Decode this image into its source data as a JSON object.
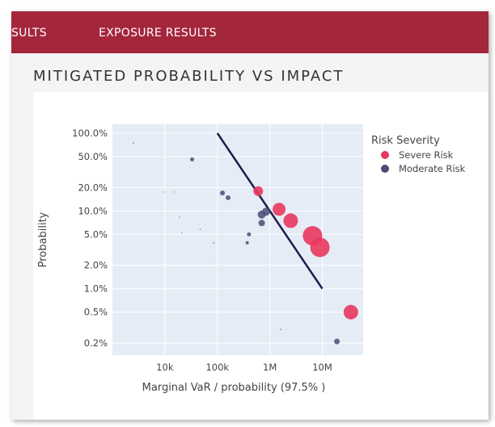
{
  "tabs": [
    {
      "label": "SULTS"
    },
    {
      "label": "EXPOSURE RESULTS"
    }
  ],
  "section": {
    "title": "MITIGATED PROBABILITY VS IMPACT"
  },
  "colors": {
    "severe": "#e8375e",
    "moderate": "#4b4b73",
    "trend": "#1e1a4e",
    "header": "#a4263b"
  },
  "chart_data": {
    "type": "scatter",
    "title": "",
    "xlabel": "Marginal VaR / probability (97.5% )",
    "ylabel": "Probability",
    "x_scale": "log",
    "y_scale": "log",
    "xlim": [
      1000,
      60000000
    ],
    "ylim": [
      0.0014,
      1.3
    ],
    "grid": true,
    "legend_title": "Risk Severity",
    "legend_position": "top-right",
    "x_ticks": [
      {
        "value": 10000,
        "label": "10k"
      },
      {
        "value": 100000,
        "label": "100k"
      },
      {
        "value": 1000000,
        "label": "1M"
      },
      {
        "value": 10000000,
        "label": "10M"
      }
    ],
    "y_ticks": [
      {
        "value": 1.0,
        "label": "100.0%"
      },
      {
        "value": 0.5,
        "label": "50.0%"
      },
      {
        "value": 0.2,
        "label": "20.0%"
      },
      {
        "value": 0.1,
        "label": "10.0%"
      },
      {
        "value": 0.05,
        "label": "5.0%"
      },
      {
        "value": 0.02,
        "label": "2.0%"
      },
      {
        "value": 0.01,
        "label": "1.0%"
      },
      {
        "value": 0.005,
        "label": "0.5%"
      },
      {
        "value": 0.002,
        "label": "0.2%"
      }
    ],
    "trend_line": {
      "x": [
        100000,
        10000000
      ],
      "y": [
        1.0,
        0.01
      ]
    },
    "series": [
      {
        "name": "Severe Risk",
        "points": [
          {
            "x": 600000,
            "y": 0.18,
            "size": 6
          },
          {
            "x": 1500000,
            "y": 0.105,
            "size": 8
          },
          {
            "x": 2500000,
            "y": 0.075,
            "size": 9
          },
          {
            "x": 6500000,
            "y": 0.048,
            "size": 12
          },
          {
            "x": 9000000,
            "y": 0.034,
            "size": 12
          },
          {
            "x": 35000000,
            "y": 0.005,
            "size": 9
          }
        ]
      },
      {
        "name": "Moderate Risk",
        "points": [
          {
            "x": 2500,
            "y": 0.75,
            "size": 0.8
          },
          {
            "x": 33000,
            "y": 0.46,
            "size": 2.5
          },
          {
            "x": 10000,
            "y": 0.175,
            "size": 0.5
          },
          {
            "x": 15000,
            "y": 0.175,
            "size": 0.5
          },
          {
            "x": 125000,
            "y": 0.17,
            "size": 3
          },
          {
            "x": 160000,
            "y": 0.148,
            "size": 3
          },
          {
            "x": 19000,
            "y": 0.083,
            "size": 0.4
          },
          {
            "x": 47000,
            "y": 0.058,
            "size": 0.7
          },
          {
            "x": 21000,
            "y": 0.052,
            "size": 0.4
          },
          {
            "x": 85000,
            "y": 0.039,
            "size": 0.8
          },
          {
            "x": 400000,
            "y": 0.05,
            "size": 2.5
          },
          {
            "x": 370000,
            "y": 0.039,
            "size": 2
          },
          {
            "x": 700000,
            "y": 0.09,
            "size": 5
          },
          {
            "x": 850000,
            "y": 0.098,
            "size": 5
          },
          {
            "x": 700000,
            "y": 0.07,
            "size": 4
          },
          {
            "x": 1600000,
            "y": 0.003,
            "size": 0.7
          },
          {
            "x": 19000000,
            "y": 0.0021,
            "size": 3.5
          }
        ]
      }
    ]
  }
}
